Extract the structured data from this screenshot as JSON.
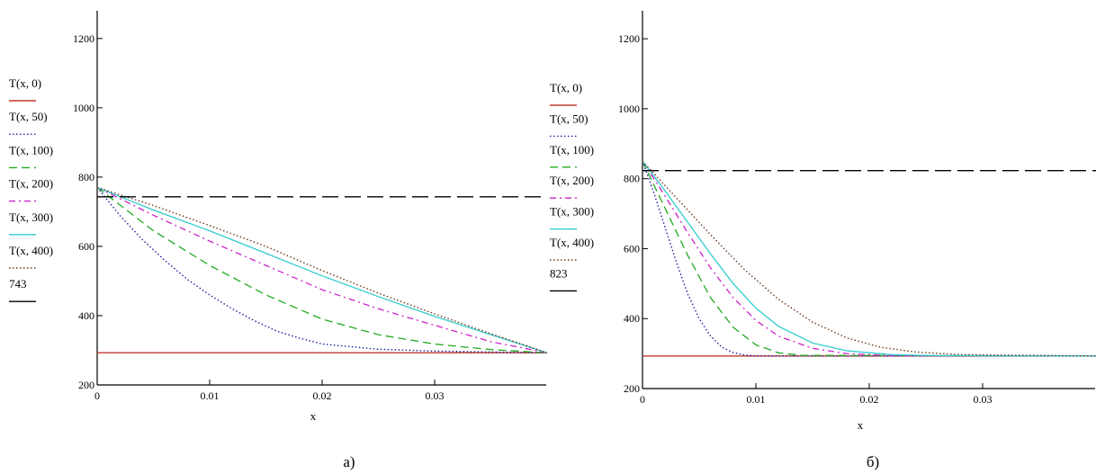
{
  "chart_data": [
    {
      "type": "line",
      "panel_label": "а)",
      "xlabel": "x",
      "ylim": [
        200,
        1280
      ],
      "xlim": [
        0,
        0.04
      ],
      "y_ticks": [
        {
          "value": 200,
          "label": "200"
        },
        {
          "value": 400,
          "label": "400"
        },
        {
          "value": 600,
          "label": "600"
        },
        {
          "value": 800,
          "label": "800"
        },
        {
          "value": 1000,
          "label": "1000"
        },
        {
          "value": 1200,
          "label": "1200"
        }
      ],
      "x_ticks": [
        {
          "value": 0,
          "label": "0"
        },
        {
          "value": 0.01,
          "label": "0.01"
        },
        {
          "value": 0.02,
          "label": "0.02"
        },
        {
          "value": 0.03,
          "label": "0.03"
        }
      ],
      "grid": false,
      "legend_position": "left",
      "series": [
        {
          "name": "T(x, 0)",
          "color": "#c0392b",
          "dash": "solid",
          "x": [
            0,
            0.04
          ],
          "y": [
            293,
            293
          ]
        },
        {
          "name": "T(x, 50)",
          "color": "#1f1fa0",
          "dash": "dot",
          "x": [
            0,
            0.002,
            0.004,
            0.006,
            0.008,
            0.01,
            0.012,
            0.014,
            0.016,
            0.018,
            0.02,
            0.025,
            0.03,
            0.035,
            0.04
          ],
          "y": [
            770,
            690,
            620,
            560,
            505,
            460,
            420,
            385,
            355,
            335,
            318,
            303,
            298,
            295,
            293
          ]
        },
        {
          "name": "T(x, 100)",
          "color": "#22aa22",
          "dash": "dash",
          "x": [
            0,
            0.005,
            0.01,
            0.015,
            0.02,
            0.025,
            0.03,
            0.035,
            0.04
          ],
          "y": [
            770,
            645,
            545,
            460,
            390,
            345,
            318,
            302,
            293
          ]
        },
        {
          "name": "T(x, 200)",
          "color": "#cc22cc",
          "dash": "dashdot",
          "x": [
            0,
            0.005,
            0.01,
            0.015,
            0.02,
            0.025,
            0.03,
            0.035,
            0.04
          ],
          "y": [
            770,
            690,
            615,
            545,
            475,
            420,
            372,
            325,
            293
          ]
        },
        {
          "name": "T(x, 300)",
          "color": "#33cccc",
          "dash": "solid",
          "x": [
            0,
            0.005,
            0.01,
            0.015,
            0.02,
            0.025,
            0.03,
            0.035,
            0.04
          ],
          "y": [
            770,
            705,
            645,
            580,
            515,
            455,
            398,
            345,
            293
          ]
        },
        {
          "name": "T(x, 400)",
          "color": "#6b3a1e",
          "dash": "dot",
          "x": [
            0,
            0.005,
            0.01,
            0.015,
            0.02,
            0.025,
            0.03,
            0.035,
            0.04
          ],
          "y": [
            770,
            718,
            660,
            600,
            530,
            465,
            405,
            348,
            293
          ]
        },
        {
          "name": "743",
          "color": "#000000",
          "dash": "longdash",
          "x": [
            0,
            0.04
          ],
          "y": [
            743,
            743
          ]
        }
      ]
    },
    {
      "type": "line",
      "panel_label": "б)",
      "xlabel": "x",
      "ylim": [
        200,
        1280
      ],
      "xlim": [
        0,
        0.04
      ],
      "y_ticks": [
        {
          "value": 200,
          "label": "200"
        },
        {
          "value": 400,
          "label": "400"
        },
        {
          "value": 600,
          "label": "600"
        },
        {
          "value": 800,
          "label": "800"
        },
        {
          "value": 1000,
          "label": "1000"
        },
        {
          "value": 1200,
          "label": "1200"
        }
      ],
      "x_ticks": [
        {
          "value": 0,
          "label": "0"
        },
        {
          "value": 0.01,
          "label": "0.01"
        },
        {
          "value": 0.02,
          "label": "0.02"
        },
        {
          "value": 0.03,
          "label": "0.03"
        }
      ],
      "grid": false,
      "legend_position": "left",
      "series": [
        {
          "name": "T(x, 0)",
          "color": "#c0392b",
          "dash": "solid",
          "x": [
            0,
            0.04
          ],
          "y": [
            293,
            293
          ]
        },
        {
          "name": "T(x, 50)",
          "color": "#1f1fa0",
          "dash": "dot",
          "x": [
            0,
            0.001,
            0.002,
            0.003,
            0.004,
            0.005,
            0.006,
            0.007,
            0.008,
            0.009,
            0.01,
            0.04
          ],
          "y": [
            850,
            760,
            660,
            560,
            470,
            400,
            350,
            318,
            303,
            296,
            293,
            293
          ]
        },
        {
          "name": "T(x, 100)",
          "color": "#22aa22",
          "dash": "dash",
          "x": [
            0,
            0.002,
            0.004,
            0.006,
            0.008,
            0.01,
            0.012,
            0.014,
            0.04
          ],
          "y": [
            850,
            715,
            580,
            460,
            375,
            325,
            302,
            295,
            293
          ]
        },
        {
          "name": "T(x, 200)",
          "color": "#cc22cc",
          "dash": "dashdot",
          "x": [
            0,
            0.002,
            0.004,
            0.006,
            0.008,
            0.01,
            0.012,
            0.015,
            0.018,
            0.022,
            0.04
          ],
          "y": [
            850,
            750,
            645,
            545,
            460,
            395,
            350,
            315,
            300,
            294,
            293
          ]
        },
        {
          "name": "T(x, 300)",
          "color": "#33cccc",
          "dash": "solid",
          "x": [
            0,
            0.002,
            0.004,
            0.006,
            0.008,
            0.01,
            0.012,
            0.015,
            0.018,
            0.022,
            0.026,
            0.04
          ],
          "y": [
            850,
            765,
            675,
            585,
            500,
            430,
            378,
            330,
            308,
            297,
            294,
            293
          ]
        },
        {
          "name": "T(x, 400)",
          "color": "#6b3a1e",
          "dash": "dot",
          "x": [
            0,
            0.003,
            0.006,
            0.009,
            0.012,
            0.015,
            0.018,
            0.021,
            0.024,
            0.028,
            0.04
          ],
          "y": [
            850,
            745,
            640,
            540,
            455,
            390,
            345,
            318,
            305,
            297,
            293
          ]
        },
        {
          "name": "823",
          "color": "#000000",
          "dash": "longdash",
          "x": [
            0,
            0.04
          ],
          "y": [
            823,
            823
          ]
        }
      ]
    }
  ]
}
